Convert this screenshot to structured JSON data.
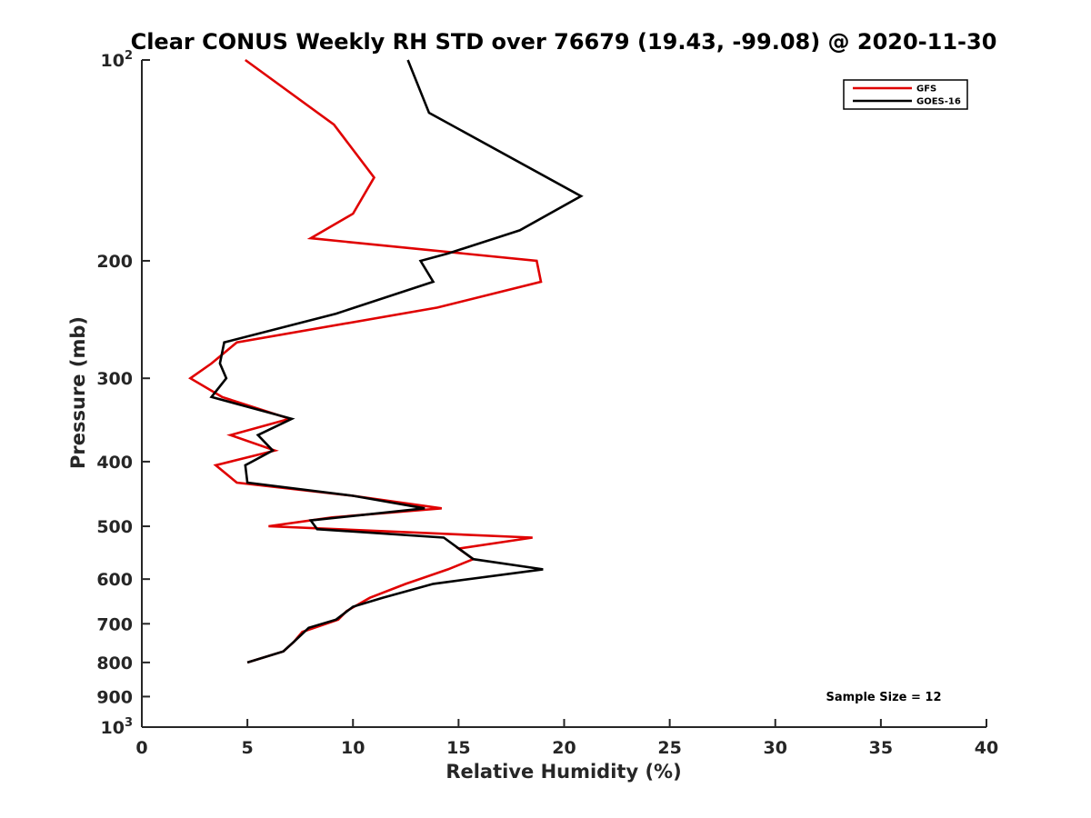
{
  "chart_data": {
    "type": "line",
    "title": "Clear CONUS Weekly RH STD over 76679 (19.43, -99.08) @ 2020-11-30",
    "xlabel": "Relative Humidity (%)",
    "ylabel": "Pressure (mb)",
    "xlim": [
      0,
      40
    ],
    "ylim": [
      100,
      1000
    ],
    "y_scale": "log",
    "y_reversed": true,
    "x_ticks": [
      "0",
      "5",
      "10",
      "15",
      "20",
      "25",
      "30",
      "35",
      "40"
    ],
    "y_ticks": [
      {
        "value": 100,
        "base": "10",
        "exp": "2"
      },
      {
        "value": 200,
        "label": "200"
      },
      {
        "value": 300,
        "label": "300"
      },
      {
        "value": 400,
        "label": "400"
      },
      {
        "value": 500,
        "label": "500"
      },
      {
        "value": 600,
        "label": "600"
      },
      {
        "value": 700,
        "label": "700"
      },
      {
        "value": 800,
        "label": "800"
      },
      {
        "value": 900,
        "label": "900"
      },
      {
        "value": 1000,
        "base": "10",
        "exp": "3"
      }
    ],
    "legend_position": "top-right",
    "grid": false,
    "annotation": "Sample Size = 12",
    "series": [
      {
        "name": "GFS",
        "color": "#e00000",
        "points": [
          [
            4.9,
            100
          ],
          [
            9.1,
            125
          ],
          [
            11.0,
            150
          ],
          [
            10.0,
            170
          ],
          [
            8.0,
            185
          ],
          [
            18.7,
            200
          ],
          [
            18.9,
            215
          ],
          [
            14.0,
            235
          ],
          [
            4.5,
            265
          ],
          [
            3.3,
            285
          ],
          [
            2.3,
            300
          ],
          [
            3.8,
            320
          ],
          [
            7.0,
            345
          ],
          [
            4.2,
            365
          ],
          [
            6.3,
            385
          ],
          [
            3.5,
            405
          ],
          [
            4.5,
            430
          ],
          [
            10.0,
            450
          ],
          [
            14.2,
            470
          ],
          [
            9.0,
            485
          ],
          [
            6.0,
            500
          ],
          [
            18.5,
            520
          ],
          [
            15.0,
            540
          ],
          [
            15.7,
            560
          ],
          [
            14.5,
            580
          ],
          [
            12.5,
            610
          ],
          [
            10.8,
            640
          ],
          [
            9.7,
            670
          ],
          [
            9.3,
            690
          ],
          [
            7.6,
            720
          ],
          [
            7.2,
            745
          ],
          [
            6.7,
            770
          ],
          [
            5.0,
            800
          ]
        ]
      },
      {
        "name": "GOES-16",
        "color": "#000000",
        "points": [
          [
            12.6,
            100
          ],
          [
            13.6,
            120
          ],
          [
            20.8,
            160
          ],
          [
            17.9,
            180
          ],
          [
            14.5,
            195
          ],
          [
            13.2,
            200
          ],
          [
            13.8,
            215
          ],
          [
            9.2,
            240
          ],
          [
            3.9,
            265
          ],
          [
            3.7,
            285
          ],
          [
            4.0,
            300
          ],
          [
            3.3,
            320
          ],
          [
            7.1,
            345
          ],
          [
            5.5,
            365
          ],
          [
            6.2,
            385
          ],
          [
            4.9,
            405
          ],
          [
            5.0,
            430
          ],
          [
            10.0,
            450
          ],
          [
            13.4,
            470
          ],
          [
            8.0,
            490
          ],
          [
            8.3,
            505
          ],
          [
            14.3,
            520
          ],
          [
            15.7,
            560
          ],
          [
            19.0,
            580
          ],
          [
            13.8,
            610
          ],
          [
            11.4,
            640
          ],
          [
            10.0,
            660
          ],
          [
            9.2,
            690
          ],
          [
            7.9,
            710
          ],
          [
            7.2,
            745
          ],
          [
            6.7,
            770
          ],
          [
            5.0,
            800
          ]
        ]
      }
    ]
  }
}
